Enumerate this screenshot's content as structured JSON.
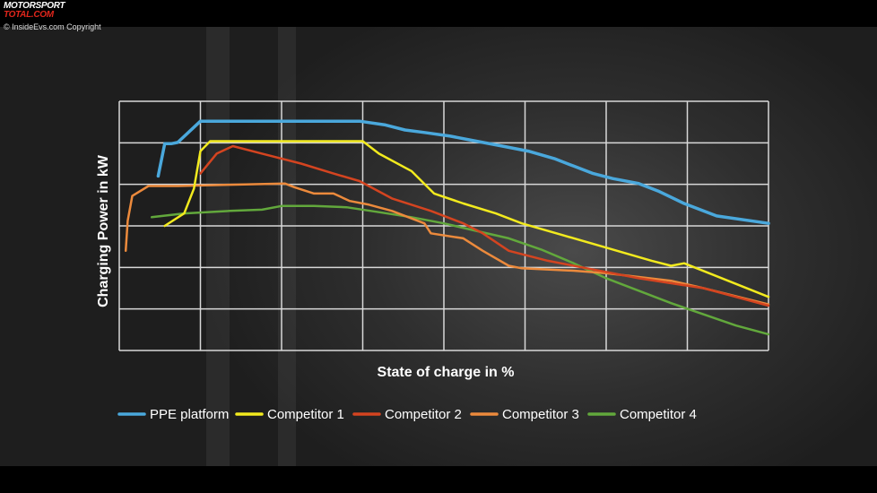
{
  "watermark": {
    "logo_line1": "MOTORSPORT",
    "logo_line2": "TOTAL.COM",
    "copyright": "© InsideEvs.com Copyright"
  },
  "chart_data": {
    "type": "line",
    "title": "",
    "xlabel": "State of charge in %",
    "ylabel": "Charging Power in kW",
    "xlim": [
      0,
      100
    ],
    "ylim": [
      0,
      100
    ],
    "grid": true,
    "legend_position": "bottom",
    "series": [
      {
        "name": "PPE platform",
        "color": "#4aa8dc",
        "x": [
          6,
          7,
          8,
          9,
          12.5,
          18,
          25,
          31,
          37,
          41,
          44,
          47,
          51,
          55,
          59,
          63,
          67,
          70,
          73,
          76,
          80,
          83,
          87,
          92,
          100
        ],
        "y": [
          70,
          83,
          83,
          83.5,
          92,
          92,
          92,
          92,
          92,
          90.5,
          88.5,
          87.5,
          86,
          84,
          82,
          80,
          77,
          74,
          71,
          69,
          67,
          64,
          59,
          54,
          51
        ]
      },
      {
        "name": "Competitor 1",
        "color": "#f2ea1e",
        "x": [
          7,
          10,
          11.5,
          12.5,
          14,
          20,
          25,
          30,
          37.5,
          40,
          45,
          48.5,
          53,
          58,
          62,
          68,
          74,
          78,
          82,
          85,
          87,
          100
        ],
        "y": [
          50,
          55,
          65,
          80,
          84,
          84,
          84,
          84,
          84,
          79,
          72,
          63,
          59,
          55,
          51,
          46.5,
          42,
          39,
          36,
          34,
          35,
          21.5
        ]
      },
      {
        "name": "Competitor 2",
        "color": "#d44420",
        "x": [
          12.5,
          15,
          17.5,
          22,
          28,
          33,
          37,
          42,
          48,
          53,
          56,
          60,
          66,
          72,
          80,
          90,
          100
        ],
        "y": [
          71,
          79,
          82,
          79,
          75,
          71,
          68,
          61,
          56,
          51,
          47,
          40,
          36,
          33,
          29,
          25,
          18
        ]
      },
      {
        "name": "Competitor 3",
        "color": "#ec8a3c",
        "x": [
          1,
          1.3,
          2,
          4.5,
          9,
          17,
          25.5,
          27,
          30,
          33,
          35.5,
          38.5,
          42,
          47,
          48,
          53,
          56,
          60,
          62,
          70,
          75,
          85,
          90,
          100
        ],
        "y": [
          40,
          52,
          62,
          66,
          66,
          66.5,
          67,
          65.5,
          63,
          63,
          60,
          58.5,
          56,
          51,
          47,
          45,
          40,
          34,
          33,
          32,
          31,
          28,
          25,
          18.5
        ]
      },
      {
        "name": "Competitor 4",
        "color": "#62a83c",
        "x": [
          5,
          10,
          17,
          22,
          25,
          30,
          35,
          40,
          45,
          50,
          55,
          60,
          65,
          70,
          75,
          80,
          85,
          90,
          95,
          100
        ],
        "y": [
          53.5,
          55,
          56,
          56.5,
          58,
          58,
          57.5,
          55.5,
          53.5,
          51,
          48,
          45,
          40.5,
          35,
          29,
          24,
          19,
          14.5,
          10,
          6.5
        ]
      }
    ]
  }
}
